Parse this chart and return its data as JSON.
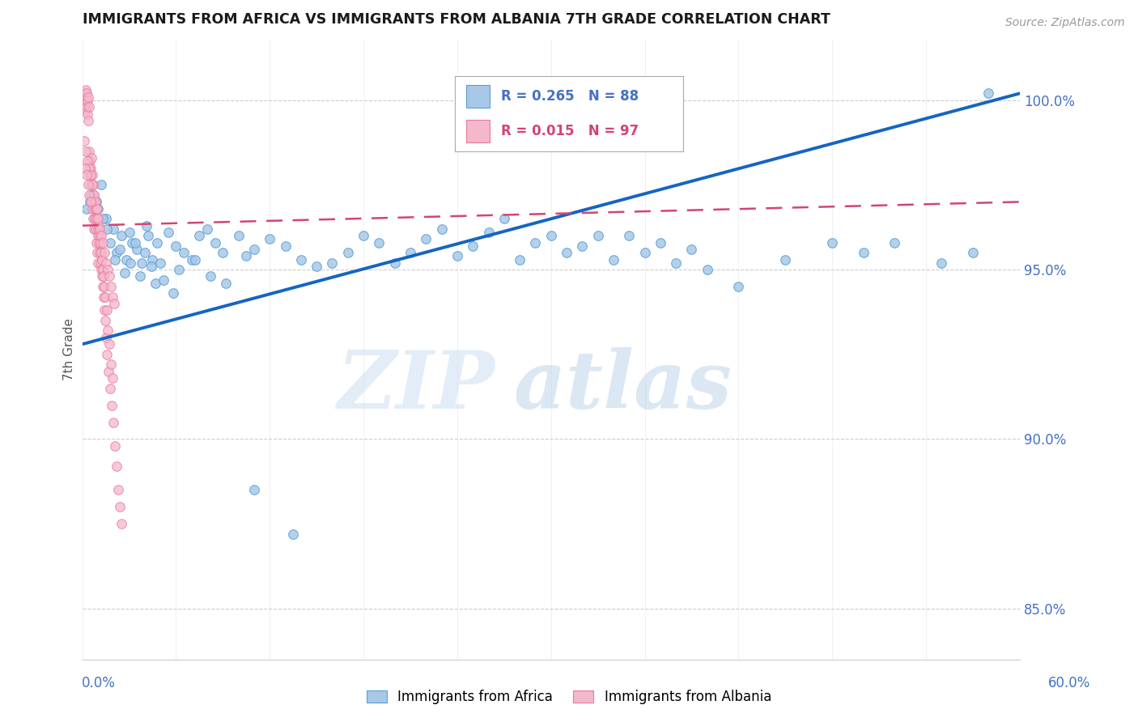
{
  "title": "IMMIGRANTS FROM AFRICA VS IMMIGRANTS FROM ALBANIA 7TH GRADE CORRELATION CHART",
  "source": "Source: ZipAtlas.com",
  "ylabel": "7th Grade",
  "ytick_values": [
    85.0,
    90.0,
    95.0,
    100.0
  ],
  "xlim": [
    0.0,
    60.0
  ],
  "ylim": [
    83.5,
    101.8
  ],
  "africa_color": "#a8c8e8",
  "africa_edge": "#5a9fd4",
  "albania_color": "#f4b8cb",
  "albania_edge": "#e87aa0",
  "trend_blue": "#1565c0",
  "trend_pink": "#d44472",
  "africa_R": 0.265,
  "africa_N": 88,
  "albania_R": 0.015,
  "albania_N": 97,
  "watermark_zip": "ZIP",
  "watermark_atlas": "atlas",
  "axis_label_color": "#4472c4",
  "grid_color": "#cccccc",
  "title_color": "#1a1a1a",
  "africa_trend_x0": 0.0,
  "africa_trend_y0": 92.8,
  "africa_trend_x1": 60.0,
  "africa_trend_y1": 100.2,
  "albania_trend_x0": 0.0,
  "albania_trend_y0": 96.3,
  "albania_trend_x1": 60.0,
  "albania_trend_y1": 97.0,
  "africa_x": [
    0.5,
    1.0,
    1.2,
    1.5,
    1.8,
    2.0,
    2.2,
    2.5,
    2.8,
    3.0,
    3.2,
    3.5,
    3.8,
    4.0,
    4.2,
    4.5,
    4.8,
    5.0,
    5.5,
    6.0,
    6.5,
    7.0,
    7.5,
    8.0,
    8.5,
    9.0,
    10.0,
    10.5,
    11.0,
    12.0,
    13.0,
    14.0,
    15.0,
    16.0,
    17.0,
    18.0,
    19.0,
    20.0,
    21.0,
    22.0,
    23.0,
    24.0,
    25.0,
    26.0,
    27.0,
    28.0,
    29.0,
    30.0,
    31.0,
    32.0,
    33.0,
    34.0,
    35.0,
    36.0,
    37.0,
    38.0,
    39.0,
    40.0,
    42.0,
    45.0,
    48.0,
    50.0,
    52.0,
    55.0,
    57.0,
    58.0,
    0.3,
    0.6,
    0.9,
    1.3,
    1.6,
    2.1,
    2.4,
    2.7,
    3.1,
    3.4,
    3.7,
    4.1,
    4.4,
    4.7,
    5.2,
    5.8,
    6.2,
    7.2,
    8.2,
    9.2,
    11.0,
    13.5
  ],
  "africa_y": [
    97.0,
    96.8,
    97.5,
    96.5,
    95.8,
    96.2,
    95.5,
    96.0,
    95.3,
    96.1,
    95.8,
    95.6,
    95.2,
    95.5,
    96.0,
    95.3,
    95.8,
    95.2,
    96.1,
    95.7,
    95.5,
    95.3,
    96.0,
    96.2,
    95.8,
    95.5,
    96.0,
    95.4,
    95.6,
    95.9,
    95.7,
    95.3,
    95.1,
    95.2,
    95.5,
    96.0,
    95.8,
    95.2,
    95.5,
    95.9,
    96.2,
    95.4,
    95.7,
    96.1,
    96.5,
    95.3,
    95.8,
    96.0,
    95.5,
    95.7,
    96.0,
    95.3,
    96.0,
    95.5,
    95.8,
    95.2,
    95.6,
    95.0,
    94.5,
    95.3,
    95.8,
    95.5,
    95.8,
    95.2,
    95.5,
    100.2,
    96.8,
    97.2,
    97.0,
    96.5,
    96.2,
    95.3,
    95.6,
    94.9,
    95.2,
    95.8,
    94.8,
    96.3,
    95.1,
    94.6,
    94.7,
    94.3,
    95.0,
    95.3,
    94.8,
    94.6,
    88.5,
    87.2
  ],
  "albania_x": [
    0.1,
    0.12,
    0.15,
    0.18,
    0.2,
    0.22,
    0.25,
    0.28,
    0.3,
    0.32,
    0.35,
    0.38,
    0.4,
    0.42,
    0.45,
    0.48,
    0.5,
    0.52,
    0.55,
    0.58,
    0.6,
    0.62,
    0.65,
    0.68,
    0.7,
    0.72,
    0.75,
    0.78,
    0.8,
    0.82,
    0.85,
    0.88,
    0.9,
    0.92,
    0.95,
    0.98,
    1.0,
    1.02,
    1.05,
    1.08,
    1.1,
    1.12,
    1.15,
    1.18,
    1.2,
    1.22,
    1.25,
    1.28,
    1.3,
    1.32,
    1.35,
    1.38,
    1.4,
    1.42,
    1.45,
    1.48,
    1.5,
    1.55,
    1.6,
    1.65,
    1.7,
    1.75,
    1.8,
    1.85,
    1.9,
    1.95,
    2.0,
    2.1,
    2.2,
    2.3,
    2.4,
    2.5,
    0.13,
    0.23,
    0.33,
    0.43,
    0.53,
    0.63,
    0.73,
    0.83,
    0.93,
    1.03,
    1.13,
    1.23,
    1.33,
    1.43,
    1.53,
    1.63,
    1.73,
    1.83,
    1.93,
    2.03,
    0.16,
    0.26,
    0.36,
    0.46,
    0.56
  ],
  "albania_y": [
    100.2,
    100.0,
    99.8,
    100.1,
    99.9,
    100.3,
    99.7,
    100.2,
    99.8,
    100.0,
    99.6,
    100.1,
    99.4,
    99.8,
    98.5,
    98.2,
    97.8,
    98.0,
    97.5,
    98.3,
    97.0,
    97.8,
    96.8,
    97.5,
    96.5,
    97.2,
    96.2,
    97.0,
    96.8,
    96.5,
    96.2,
    96.8,
    95.8,
    96.5,
    95.5,
    96.2,
    95.2,
    96.0,
    95.8,
    96.3,
    95.5,
    96.0,
    95.2,
    95.8,
    95.0,
    95.5,
    94.8,
    95.3,
    94.5,
    95.0,
    94.2,
    94.8,
    93.8,
    94.5,
    93.5,
    94.2,
    93.0,
    93.8,
    92.5,
    93.2,
    92.0,
    92.8,
    91.5,
    92.2,
    91.0,
    91.8,
    90.5,
    89.8,
    89.2,
    88.5,
    88.0,
    87.5,
    98.8,
    98.5,
    98.2,
    98.0,
    97.8,
    97.5,
    97.2,
    97.0,
    96.8,
    96.5,
    96.2,
    96.0,
    95.8,
    95.5,
    95.2,
    95.0,
    94.8,
    94.5,
    94.2,
    94.0,
    98.0,
    97.8,
    97.5,
    97.2,
    97.0
  ]
}
